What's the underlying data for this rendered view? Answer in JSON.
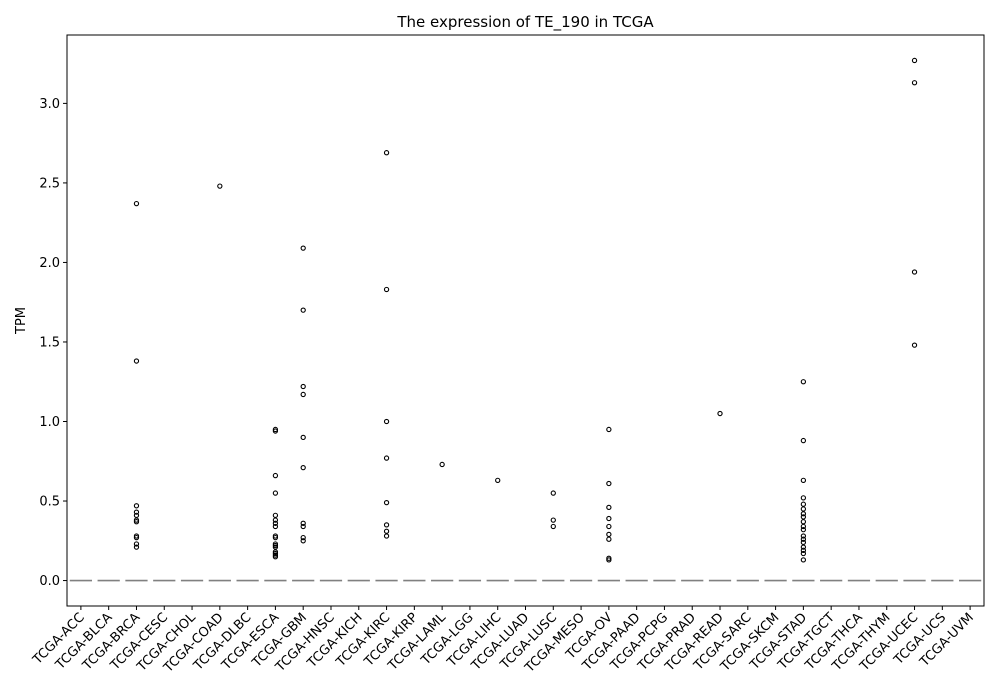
{
  "chart_data": {
    "type": "box",
    "title": "The expression of TE_190 in TCGA",
    "xlabel": "",
    "ylabel": "TPM",
    "ylim": [
      -0.16,
      3.43
    ],
    "yticks": [
      0.0,
      0.5,
      1.0,
      1.5,
      2.0,
      2.5,
      3.0
    ],
    "ytick_labels": [
      "0.0",
      "0.5",
      "1.0",
      "1.5",
      "2.0",
      "2.5",
      "3.0"
    ],
    "grid": false,
    "legend": "none",
    "box_color": "#808080",
    "categories": [
      "TCGA-ACC",
      "TCGA-BLCA",
      "TCGA-BRCA",
      "TCGA-CESC",
      "TCGA-CHOL",
      "TCGA-COAD",
      "TCGA-DLBC",
      "TCGA-ESCA",
      "TCGA-GBM",
      "TCGA-HNSC",
      "TCGA-KICH",
      "TCGA-KIRC",
      "TCGA-KIRP",
      "TCGA-LAML",
      "TCGA-LGG",
      "TCGA-LIHC",
      "TCGA-LUAD",
      "TCGA-LUSC",
      "TCGA-MESO",
      "TCGA-OV",
      "TCGA-PAAD",
      "TCGA-PCPG",
      "TCGA-PRAD",
      "TCGA-READ",
      "TCGA-SARC",
      "TCGA-SKCM",
      "TCGA-STAD",
      "TCGA-TGCT",
      "TCGA-THCA",
      "TCGA-THYM",
      "TCGA-UCEC",
      "TCGA-UCS",
      "TCGA-UVM"
    ],
    "median": [
      0,
      0,
      0,
      0,
      0,
      0,
      0,
      0,
      0,
      0,
      0,
      0,
      0,
      0,
      0,
      0,
      0,
      0,
      0,
      0,
      0,
      0,
      0,
      0,
      0,
      0,
      0,
      0,
      0,
      0,
      0,
      0,
      0
    ],
    "outliers": [
      [],
      [],
      [
        2.37,
        1.38,
        0.47,
        0.43,
        0.41,
        0.38,
        0.37,
        0.28,
        0.27,
        0.23,
        0.21
      ],
      [],
      [],
      [
        2.48
      ],
      [],
      [
        0.95,
        0.94,
        0.66,
        0.55,
        0.41,
        0.38,
        0.36,
        0.34,
        0.28,
        0.27,
        0.23,
        0.22,
        0.21,
        0.18,
        0.17,
        0.16,
        0.15
      ],
      [
        2.09,
        1.7,
        1.22,
        1.17,
        0.9,
        0.71,
        0.36,
        0.34,
        0.27,
        0.25
      ],
      [],
      [],
      [
        2.69,
        1.83,
        1.0,
        0.77,
        0.49,
        0.35,
        0.31,
        0.28
      ],
      [],
      [
        0.73
      ],
      [],
      [
        0.63
      ],
      [],
      [
        0.55,
        0.38,
        0.34
      ],
      [],
      [
        0.95,
        0.61,
        0.46,
        0.39,
        0.34,
        0.29,
        0.26,
        0.14,
        0.13
      ],
      [],
      [],
      [],
      [
        1.05
      ],
      [],
      [],
      [
        1.25,
        0.88,
        0.63,
        0.52,
        0.48,
        0.45,
        0.42,
        0.4,
        0.37,
        0.34,
        0.32,
        0.28,
        0.26,
        0.24,
        0.21,
        0.19,
        0.17,
        0.13
      ],
      [],
      [],
      [],
      [
        3.27,
        3.13,
        1.94,
        1.48
      ],
      [],
      []
    ]
  }
}
